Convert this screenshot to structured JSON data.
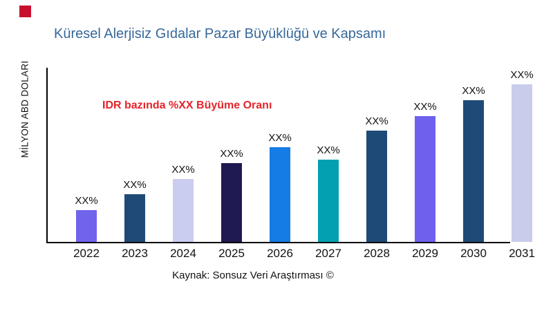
{
  "title": {
    "text": "Küresel Alerjisiz Gıdalar Pazar Büyüklüğü ve Kapsamı",
    "color": "#36689B"
  },
  "annotation": {
    "text": "IDR bazında %XX Büyüme Oranı",
    "color": "#E5242A"
  },
  "axes": {
    "y_label": "MİLYON ABD DOLARI"
  },
  "source_note": "Kaynak: Sonsuz Veri Araştırması ©",
  "logo_mark": {
    "color": "#C8102E"
  },
  "chart_data": {
    "type": "bar",
    "title": "Küresel Alerjisiz Gıdalar Pazar Büyüklüğü ve Kapsamı",
    "xlabel": "",
    "ylabel": "MİLYON ABD DOLARI",
    "categories": [
      "2022",
      "2023",
      "2024",
      "2025",
      "2026",
      "2027",
      "2028",
      "2029",
      "2030",
      "2031"
    ],
    "values": [
      46,
      69,
      91,
      114,
      137,
      119,
      161,
      182,
      205,
      228
    ],
    "data_labels": [
      "XX%",
      "XX%",
      "XX%",
      "XX%",
      "XX%",
      "XX%",
      "XX%",
      "XX%",
      "XX%",
      "XX%"
    ],
    "bar_colors": [
      "#7164EC",
      "#1F4A77",
      "#CACCF0",
      "#201A52",
      "#147CE4",
      "#03A0B2",
      "#1E4A78",
      "#6E61EE",
      "#1F4A77",
      "#CACCEC"
    ],
    "annotation": "IDR bazında %XX Büyüme Oranı",
    "grid": false,
    "legend": false,
    "y_tick_labels": []
  }
}
